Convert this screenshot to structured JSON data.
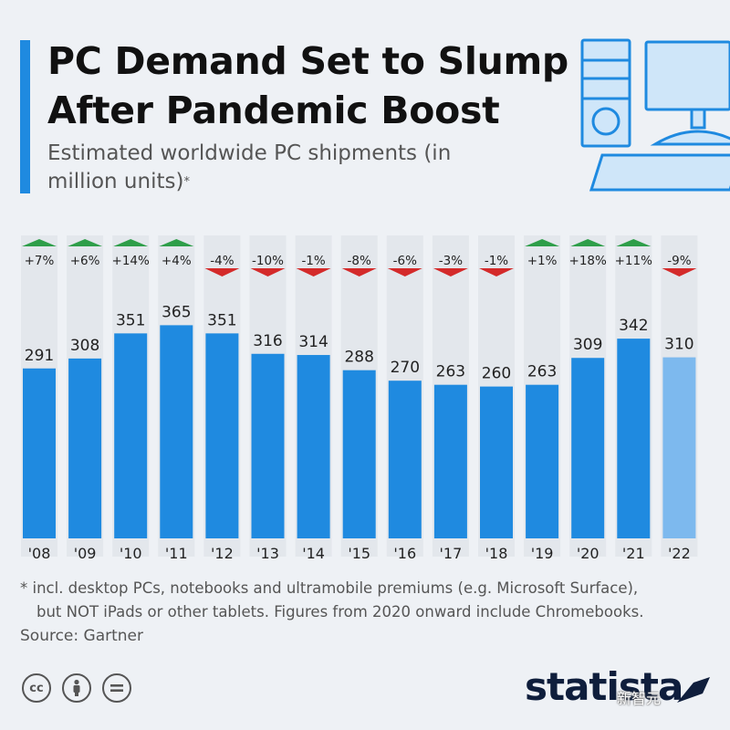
{
  "header": {
    "title": "PC Demand Set to Slump After Pandemic Boost",
    "subtitle": "Estimated worldwide PC shipments (in million units)",
    "subtitle_mark": "*"
  },
  "chart_data": {
    "type": "bar",
    "title": "PC Demand Set to Slump After Pandemic Boost",
    "subtitle": "Estimated worldwide PC shipments (in million units)",
    "categories": [
      "'08",
      "'09",
      "'10",
      "'11",
      "'12",
      "'13",
      "'14",
      "'15",
      "'16",
      "'17",
      "'18",
      "'19",
      "'20",
      "'21",
      "'22"
    ],
    "values": [
      291,
      308,
      351,
      365,
      351,
      316,
      314,
      288,
      270,
      263,
      260,
      263,
      309,
      342,
      310
    ],
    "changes": [
      "+7%",
      "+6%",
      "+14%",
      "+4%",
      "-4%",
      "-10%",
      "-1%",
      "-8%",
      "-6%",
      "-3%",
      "-1%",
      "+1%",
      "+18%",
      "+11%",
      "-9%"
    ],
    "estimate_categories": [
      "'22"
    ],
    "ylim": [
      0,
      420
    ],
    "xlabel": "",
    "ylabel": "",
    "grid": false
  },
  "colors": {
    "bar": "#1f8ae0",
    "bar_estimate": "#7db9ee",
    "column_bg": "#e3e7ec",
    "up": "#2e9e49",
    "down": "#d42a2a"
  },
  "footer": {
    "footnote_line1": "* incl. desktop PCs, notebooks and ultramobile premiums (e.g. Microsoft Surface),",
    "footnote_line2": "but NOT iPads or other tablets. Figures from 2020 onward include Chromebooks.",
    "source": "Source: Gartner",
    "license_icons": [
      "cc-icon",
      "attribution-icon",
      "no-derivatives-icon"
    ],
    "brand": "statista",
    "watermark": "新智元"
  },
  "illustration": {
    "icon": "desktop-computer-icon"
  }
}
